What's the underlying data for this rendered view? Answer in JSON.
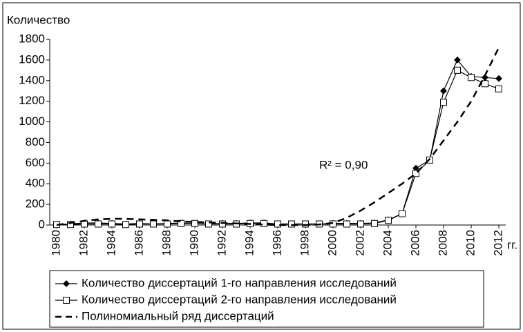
{
  "chart_data": {
    "type": "line",
    "y_label": "Количество",
    "x_label": "гг.",
    "annotation": "R² = 0,90",
    "x": [
      1980,
      1981,
      1982,
      1983,
      1984,
      1985,
      1986,
      1987,
      1988,
      1989,
      1990,
      1991,
      1992,
      1993,
      1994,
      1995,
      1996,
      1997,
      1998,
      1999,
      2000,
      2001,
      2002,
      2003,
      2004,
      2005,
      2006,
      2007,
      2008,
      2009,
      2010,
      2011,
      2012
    ],
    "series": [
      {
        "name": "Количество диссертаций 1-го направления исследований",
        "color": "#000000",
        "marker": "diamond",
        "dashed": false,
        "values": [
          5,
          10,
          20,
          20,
          15,
          10,
          15,
          10,
          15,
          20,
          15,
          10,
          15,
          15,
          20,
          20,
          10,
          10,
          10,
          10,
          15,
          15,
          15,
          20,
          50,
          110,
          550,
          630,
          1300,
          1600,
          1440,
          1430,
          1420
        ]
      },
      {
        "name": "Количество диссертаций 2-го направления исследований",
        "color": "#000000",
        "marker": "square",
        "dashed": false,
        "values": [
          5,
          5,
          10,
          10,
          10,
          5,
          10,
          10,
          10,
          15,
          15,
          10,
          10,
          10,
          15,
          15,
          10,
          10,
          10,
          10,
          10,
          10,
          10,
          15,
          45,
          110,
          500,
          630,
          1190,
          1500,
          1430,
          1370,
          1320
        ]
      },
      {
        "name": "Полиномиальный ряд диссертаций",
        "color": "#000000",
        "marker": "none",
        "dashed": true,
        "values": [
          0,
          20,
          40,
          55,
          60,
          60,
          55,
          50,
          45,
          35,
          30,
          25,
          20,
          15,
          10,
          5,
          0,
          0,
          0,
          5,
          20,
          70,
          140,
          220,
          310,
          400,
          500,
          640,
          820,
          1000,
          1200,
          1450,
          1720
        ]
      }
    ],
    "xlim": [
      1979.5,
      2012.5
    ],
    "xticks": [
      1980,
      1982,
      1984,
      1986,
      1988,
      1990,
      1992,
      1994,
      1996,
      1998,
      2000,
      2002,
      2004,
      2006,
      2008,
      2010,
      2012
    ],
    "ylim": [
      0,
      1800
    ],
    "yticks": [
      0,
      200,
      400,
      600,
      800,
      1000,
      1200,
      1400,
      1600,
      1800
    ]
  }
}
